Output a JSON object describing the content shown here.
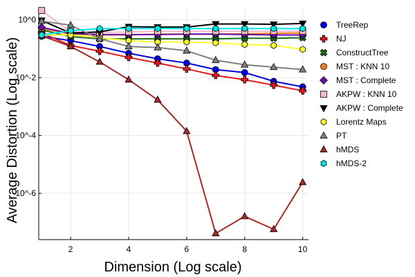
{
  "chart_data": {
    "type": "line",
    "title": "",
    "xlabel": "Dimension (Log scale)",
    "ylabel": "Average Distortion (Log scale)",
    "xlim": [
      0.9,
      10.2
    ],
    "ylim_log10": [
      -7.6,
      0.35
    ],
    "x": [
      1,
      2,
      3,
      4,
      5,
      6,
      7,
      8,
      9,
      10
    ],
    "x_ticks": [
      2,
      4,
      6,
      8,
      10
    ],
    "x_tick_labels": [
      "2",
      "4",
      "6",
      "8",
      "10"
    ],
    "y_ticks_log10": [
      0,
      -2,
      -4,
      -6
    ],
    "y_tick_labels": [
      "10^0",
      "10^-2",
      "10^-4",
      "10^-6"
    ],
    "grid": true,
    "legend_position": "right",
    "series": [
      {
        "name": "TreeRep",
        "color": "#0000dd",
        "marker": "circle",
        "values": [
          0.27,
          0.19,
          0.12,
          0.07,
          0.045,
          0.032,
          0.019,
          0.015,
          0.0075,
          0.0048
        ]
      },
      {
        "name": "NJ",
        "color": "#e41a1c",
        "marker": "cross",
        "values": [
          0.35,
          0.13,
          0.082,
          0.05,
          0.032,
          0.02,
          0.012,
          0.0085,
          0.0055,
          0.0035
        ]
      },
      {
        "name": "ConstructTree",
        "color": "#1a6e1a",
        "marker": "x",
        "values": [
          0.45,
          0.26,
          0.22,
          0.22,
          0.22,
          0.22,
          0.22,
          0.23,
          0.23,
          0.24
        ]
      },
      {
        "name": "MST : KNN 10",
        "color": "#f07d1a",
        "marker": "circle",
        "values": [
          0.5,
          0.32,
          0.3,
          0.3,
          0.32,
          0.32,
          0.32,
          0.33,
          0.34,
          0.35
        ]
      },
      {
        "name": "MST : Complete",
        "color": "#6a0dad",
        "marker": "diamond",
        "values": [
          0.55,
          0.34,
          0.31,
          0.31,
          0.31,
          0.32,
          0.32,
          0.31,
          0.3,
          0.3
        ]
      },
      {
        "name": "AKPW : KNN 10",
        "color": "#f4b8c8",
        "marker": "square",
        "values": [
          2.1,
          0.38,
          0.36,
          0.38,
          0.4,
          0.4,
          0.4,
          0.4,
          0.4,
          0.4
        ]
      },
      {
        "name": "AKPW : Complete",
        "color": "#000000",
        "marker": "triangle-down",
        "values": [
          0.95,
          0.35,
          0.38,
          0.58,
          0.56,
          0.56,
          0.72,
          0.72,
          0.7,
          0.75
        ]
      },
      {
        "name": "Lorentz Maps",
        "color": "#ffff33",
        "marker": "hexagon",
        "values": [
          0.3,
          0.3,
          0.24,
          0.19,
          0.17,
          0.17,
          0.16,
          0.14,
          0.13,
          0.095
        ]
      },
      {
        "name": "PT",
        "color": "#808080",
        "marker": "triangle-up",
        "values": [
          0.9,
          0.65,
          0.22,
          0.12,
          0.11,
          0.085,
          0.04,
          0.028,
          0.023,
          0.019
        ]
      },
      {
        "name": "hMDS",
        "color": "#a52a2a",
        "marker": "triangle-up",
        "values": [
          0.28,
          0.12,
          0.035,
          0.0085,
          0.0017,
          0.00014,
          4.1e-08,
          1.6e-07,
          5.7e-08,
          2.4e-06
        ]
      },
      {
        "name": "hMDS-2",
        "color": "#00e5e5",
        "marker": "hexagon",
        "values": [
          0.3,
          0.42,
          0.5,
          0.5,
          0.5,
          0.5,
          0.5,
          0.5,
          0.5,
          0.5
        ]
      }
    ]
  }
}
